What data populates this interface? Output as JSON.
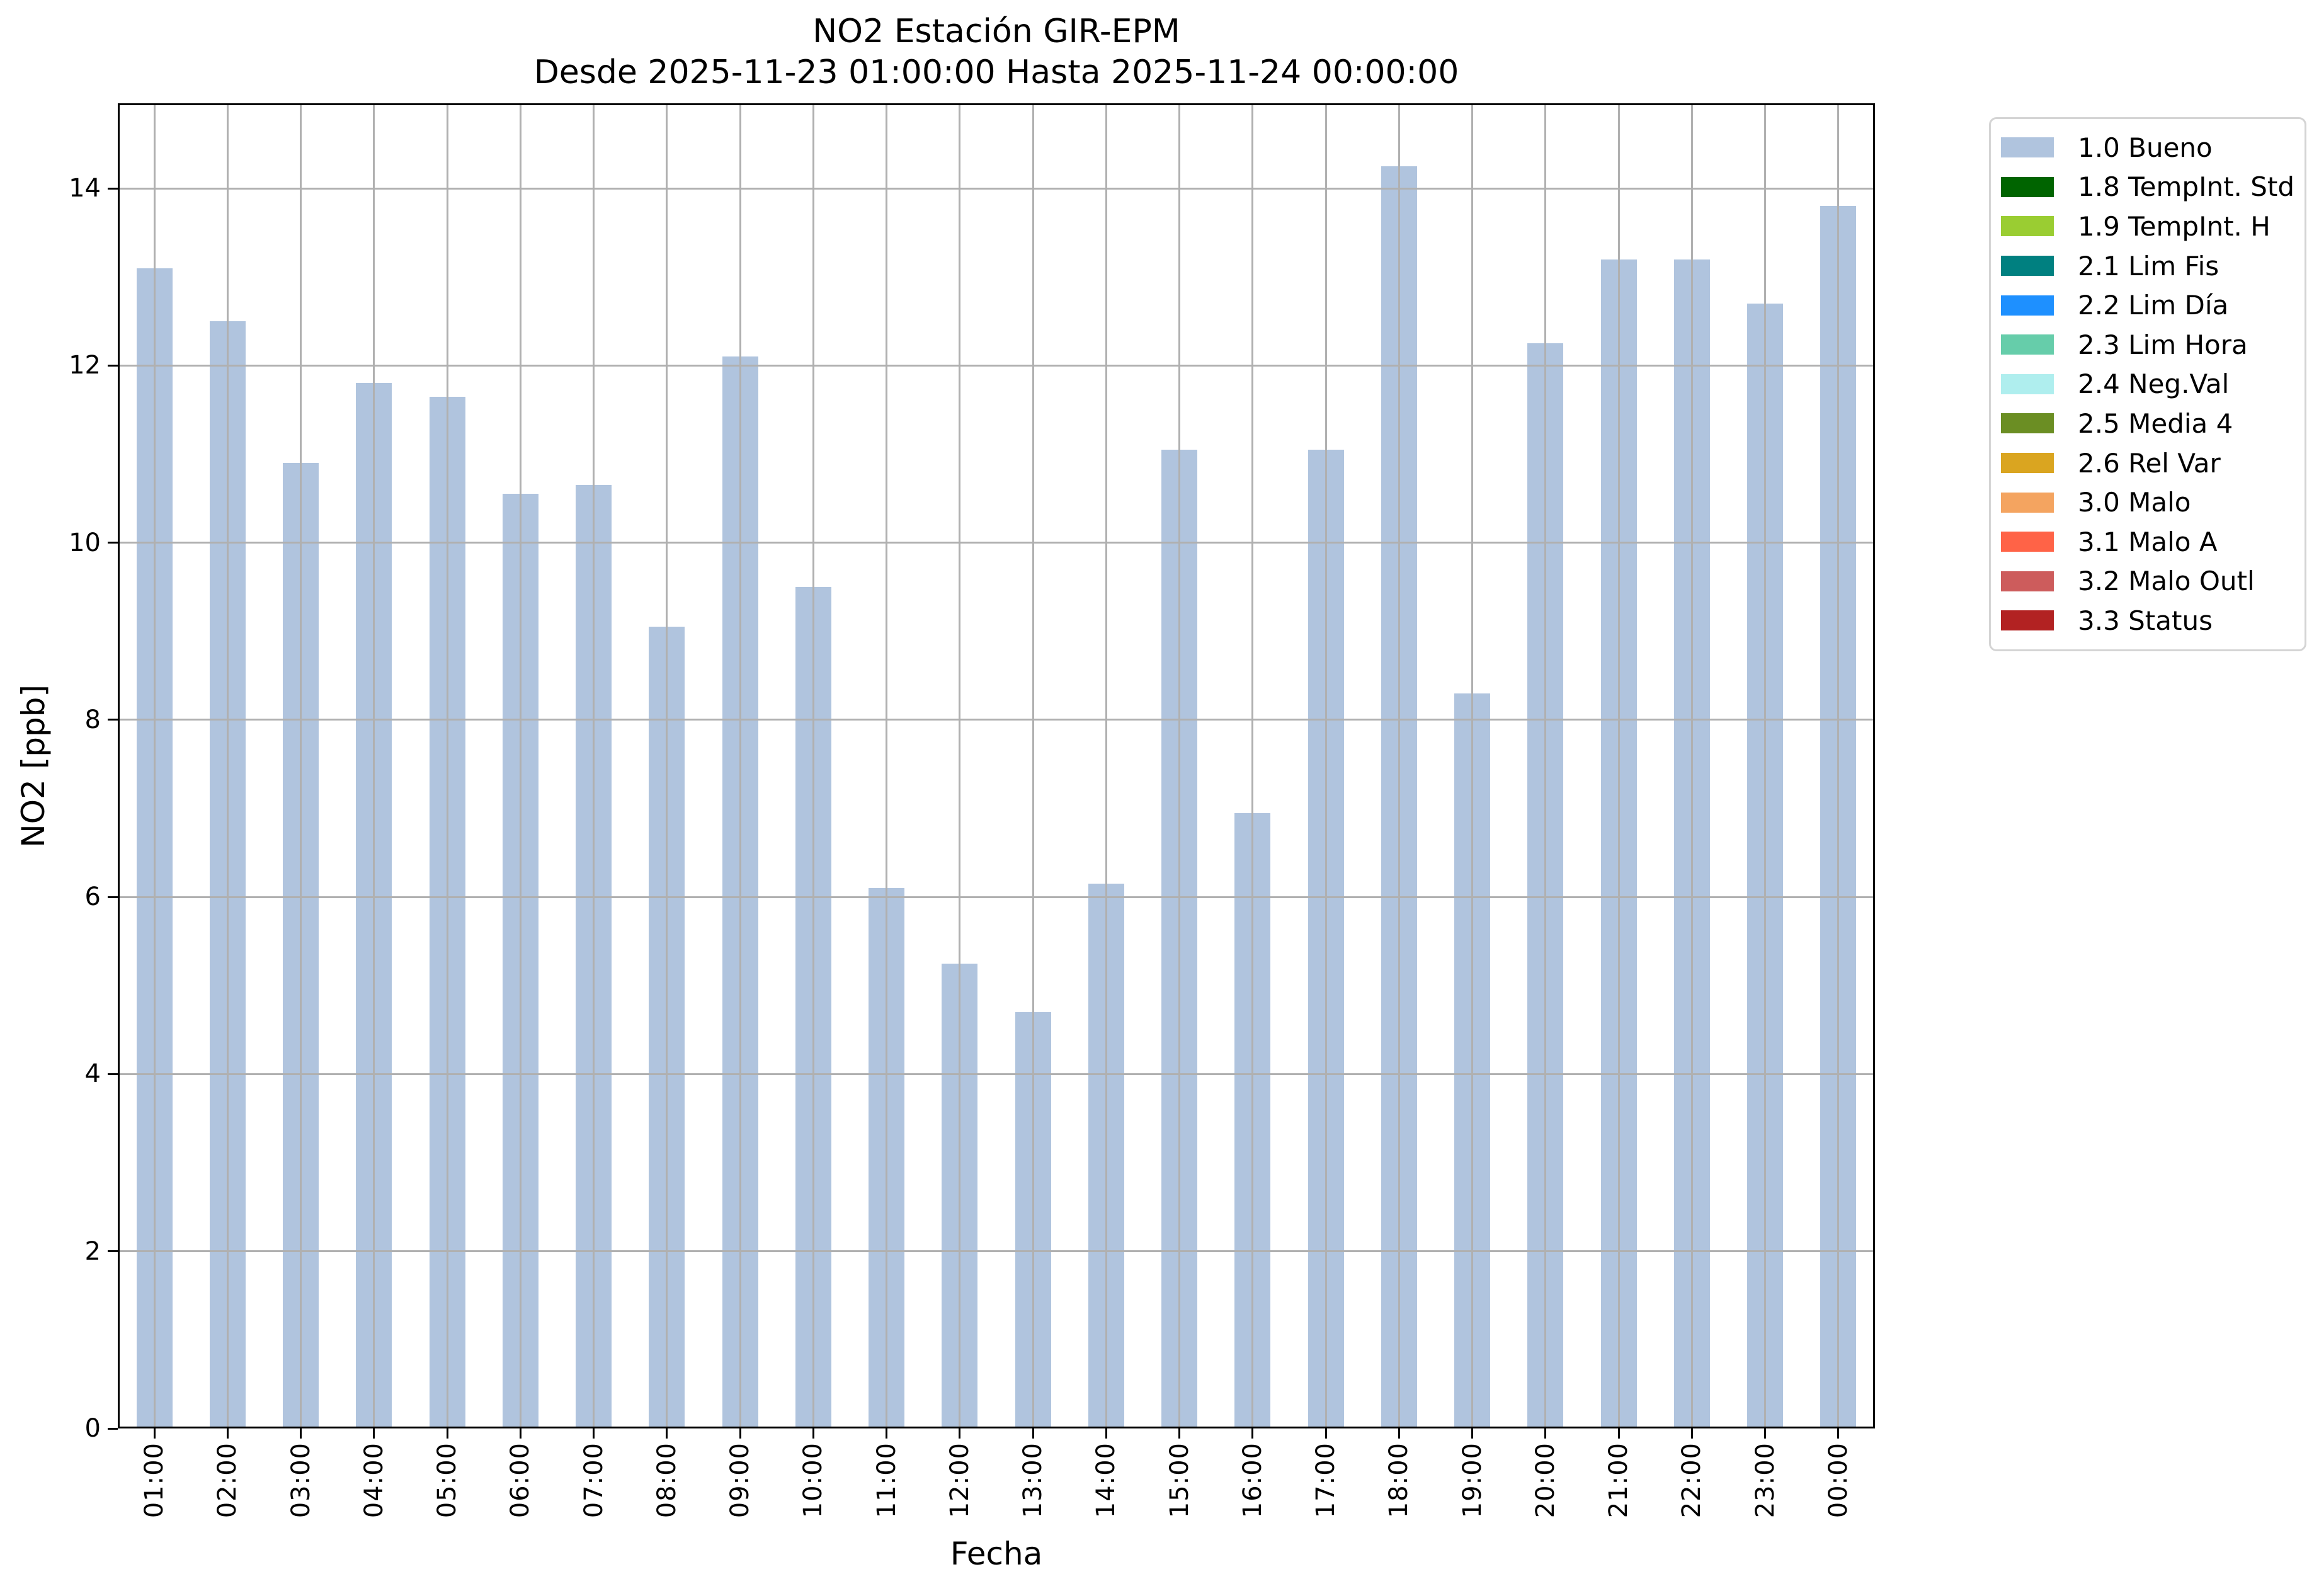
{
  "chart_data": {
    "type": "bar",
    "title": "NO2 Estación GIR-EPM",
    "subtitle": "Desde 2025-11-23 01:00:00 Hasta 2025-11-24 00:00:00",
    "xlabel": "Fecha",
    "ylabel": "NO2 [ppb]",
    "categories": [
      "01:00",
      "02:00",
      "03:00",
      "04:00",
      "05:00",
      "06:00",
      "07:00",
      "08:00",
      "09:00",
      "10:00",
      "11:00",
      "12:00",
      "13:00",
      "14:00",
      "15:00",
      "16:00",
      "17:00",
      "18:00",
      "19:00",
      "20:00",
      "21:00",
      "22:00",
      "23:00",
      "00:00"
    ],
    "values": [
      13.1,
      12.5,
      10.9,
      11.8,
      11.65,
      10.55,
      10.65,
      9.05,
      12.1,
      9.5,
      6.1,
      5.25,
      4.7,
      6.15,
      11.05,
      6.95,
      11.05,
      14.25,
      8.3,
      12.25,
      13.2,
      13.2,
      12.7,
      13.8
    ],
    "ylim": [
      0,
      14.96
    ],
    "yticks": [
      0,
      2,
      4,
      6,
      8,
      10,
      12,
      14
    ],
    "grid": true,
    "grid_color": "#b0b0b0",
    "bar_color": "#b0c4de",
    "axis_color": "#000000",
    "legend_position": "upper-right-outside",
    "legend": [
      {
        "label": "1.0 Bueno",
        "color": "#b0c4de"
      },
      {
        "label": "1.8 TempInt. Std",
        "color": "#006400"
      },
      {
        "label": "1.9 TempInt. H",
        "color": "#9acd32"
      },
      {
        "label": "2.1 Lim Fis",
        "color": "#008080"
      },
      {
        "label": "2.2 Lim Día",
        "color": "#1e90ff"
      },
      {
        "label": "2.3 Lim Hora",
        "color": "#66cdaa"
      },
      {
        "label": "2.4 Neg.Val",
        "color": "#afeeee"
      },
      {
        "label": "2.5 Media 4",
        "color": "#6b8e23"
      },
      {
        "label": "2.6 Rel Var",
        "color": "#daa520"
      },
      {
        "label": "3.0 Malo",
        "color": "#f4a460"
      },
      {
        "label": "3.1 Malo A",
        "color": "#ff6347"
      },
      {
        "label": "3.2 Malo Outl",
        "color": "#cd5c5c"
      },
      {
        "label": "3.3 Status",
        "color": "#b22222"
      }
    ]
  }
}
